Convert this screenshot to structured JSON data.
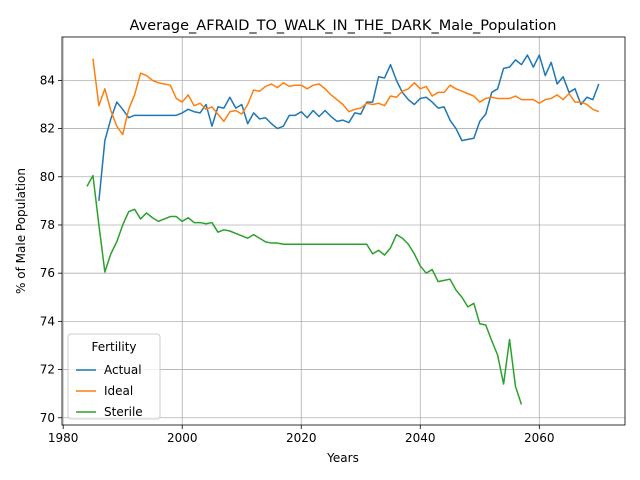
{
  "chart_data": {
    "type": "line",
    "title": "Average_AFRAID_TO_WALK_IN_THE_DARK_Male_Population",
    "xlabel": "Years",
    "ylabel": "% of Male Population",
    "legend_title": "Fertility",
    "legend_loc": "lower left",
    "grid": true,
    "xlim": [
      1979.8,
      2074.4
    ],
    "xticks": [
      1980,
      2000,
      2020,
      2040,
      2060
    ],
    "ylim": [
      69.7,
      85.8
    ],
    "yticks": [
      70,
      72,
      74,
      76,
      78,
      80,
      82,
      84
    ],
    "x": [
      1984,
      1985,
      1986,
      1987,
      1988,
      1989,
      1990,
      1991,
      1992,
      1993,
      1994,
      1995,
      1996,
      1997,
      1998,
      1999,
      2000,
      2001,
      2002,
      2003,
      2004,
      2005,
      2006,
      2007,
      2008,
      2009,
      2010,
      2011,
      2012,
      2013,
      2014,
      2015,
      2016,
      2017,
      2018,
      2019,
      2020,
      2021,
      2022,
      2023,
      2024,
      2025,
      2026,
      2027,
      2028,
      2029,
      2030,
      2031,
      2032,
      2033,
      2034,
      2035,
      2036,
      2037,
      2038,
      2039,
      2040,
      2041,
      2042,
      2043,
      2044,
      2045,
      2046,
      2047,
      2048,
      2049,
      2050,
      2051,
      2052,
      2053,
      2054,
      2055,
      2056,
      2057,
      2058,
      2059,
      2060,
      2061,
      2062,
      2063,
      2064,
      2065,
      2066,
      2067,
      2068,
      2069,
      2070
    ],
    "series": [
      {
        "name": "Actual",
        "color": "#1f77b4",
        "values": [
          null,
          null,
          79.0,
          81.5,
          82.4,
          83.1,
          82.8,
          82.45,
          82.55,
          82.55,
          82.55,
          82.55,
          82.55,
          82.55,
          82.55,
          82.55,
          82.65,
          82.8,
          82.7,
          82.65,
          83.0,
          82.1,
          82.9,
          82.85,
          83.3,
          82.85,
          83.0,
          82.2,
          82.65,
          82.4,
          82.45,
          82.2,
          82.0,
          82.1,
          82.55,
          82.55,
          82.7,
          82.45,
          82.75,
          82.5,
          82.75,
          82.5,
          82.3,
          82.35,
          82.25,
          82.65,
          82.6,
          83.1,
          83.1,
          84.15,
          84.1,
          84.65,
          84.0,
          83.5,
          83.2,
          83.0,
          83.25,
          83.3,
          83.1,
          82.85,
          82.9,
          82.35,
          82.0,
          81.5,
          81.55,
          81.6,
          82.3,
          82.6,
          83.5,
          83.65,
          84.5,
          84.55,
          84.85,
          84.65,
          85.05,
          84.55,
          85.05,
          84.2,
          84.75,
          83.85,
          84.15,
          83.5,
          83.65,
          83.0,
          83.3,
          83.2,
          83.85
        ]
      },
      {
        "name": "Ideal",
        "color": "#ff7f0e",
        "values": [
          null,
          84.9,
          82.95,
          83.65,
          82.75,
          82.1,
          81.75,
          82.8,
          83.4,
          84.3,
          84.2,
          84.0,
          83.9,
          83.85,
          83.8,
          83.25,
          83.1,
          83.4,
          82.95,
          83.05,
          82.8,
          82.9,
          82.6,
          82.3,
          82.7,
          82.75,
          82.6,
          83.0,
          83.6,
          83.55,
          83.75,
          83.85,
          83.7,
          83.9,
          83.75,
          83.8,
          83.8,
          83.65,
          83.8,
          83.85,
          83.65,
          83.4,
          83.2,
          83.0,
          82.7,
          82.8,
          82.85,
          83.05,
          83.0,
          83.05,
          82.95,
          83.35,
          83.3,
          83.55,
          83.65,
          83.9,
          83.65,
          83.75,
          83.35,
          83.5,
          83.5,
          83.8,
          83.65,
          83.55,
          83.45,
          83.35,
          83.1,
          83.25,
          83.3,
          83.25,
          83.25,
          83.25,
          83.35,
          83.2,
          83.2,
          83.2,
          83.05,
          83.2,
          83.25,
          83.4,
          83.2,
          83.45,
          83.1,
          83.1,
          83.0,
          82.8,
          82.7
        ]
      },
      {
        "name": "Sterile",
        "color": "#2ca02c",
        "values": [
          79.6,
          80.05,
          78.0,
          76.05,
          76.8,
          77.3,
          78.0,
          78.55,
          78.65,
          78.25,
          78.5,
          78.3,
          78.15,
          78.25,
          78.35,
          78.35,
          78.15,
          78.3,
          78.1,
          78.1,
          78.05,
          78.1,
          77.7,
          77.8,
          77.75,
          77.65,
          77.55,
          77.45,
          77.6,
          77.45,
          77.3,
          77.25,
          77.25,
          77.2,
          77.2,
          77.2,
          77.2,
          77.2,
          77.2,
          77.2,
          77.2,
          77.2,
          77.2,
          77.2,
          77.2,
          77.2,
          77.2,
          77.2,
          76.8,
          76.95,
          76.75,
          77.05,
          77.6,
          77.45,
          77.2,
          76.8,
          76.3,
          76.0,
          76.15,
          75.65,
          75.7,
          75.75,
          75.3,
          75.0,
          74.6,
          74.75,
          73.9,
          73.85,
          73.2,
          72.6,
          71.4,
          73.25,
          71.3,
          70.55,
          null,
          null,
          null,
          null,
          null,
          null,
          null,
          null,
          null,
          null,
          null,
          null,
          null
        ]
      }
    ]
  }
}
